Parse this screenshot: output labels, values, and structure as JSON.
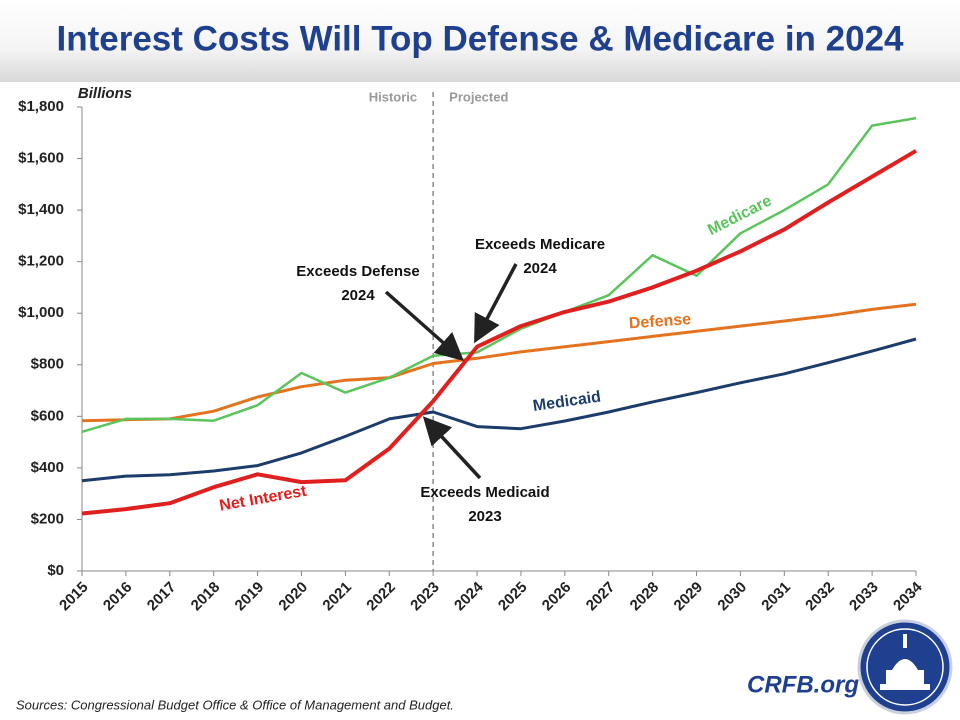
{
  "chart_data": {
    "type": "line",
    "title": "Interest Costs Will Top Defense & Medicare in 2024",
    "y_label": "Billions",
    "categories": [
      "2015",
      "2016",
      "2017",
      "2018",
      "2019",
      "2020",
      "2021",
      "2022",
      "2023",
      "2024",
      "2025",
      "2026",
      "2027",
      "2028",
      "2029",
      "2030",
      "2031",
      "2032",
      "2033",
      "2034"
    ],
    "series": [
      {
        "name": "Net Interest",
        "color": "#e0201e",
        "values": [
          223,
          240,
          263,
          325,
          375,
          345,
          352,
          475,
          659,
          870,
          950,
          1005,
          1045,
          1100,
          1165,
          1240,
          1325,
          1430,
          1530,
          1630
        ]
      },
      {
        "name": "Defense",
        "color": "#e4731f",
        "values": [
          583,
          587,
          590,
          620,
          675,
          715,
          740,
          750,
          805,
          825,
          850,
          870,
          890,
          910,
          930,
          950,
          970,
          990,
          1015,
          1035
        ]
      },
      {
        "name": "Medicare",
        "color": "#5cc45c",
        "values": [
          540,
          590,
          590,
          583,
          643,
          768,
          692,
          750,
          835,
          848,
          940,
          1005,
          1070,
          1225,
          1145,
          1310,
          1400,
          1500,
          1728,
          1757
        ]
      },
      {
        "name": "Medicaid",
        "color": "#1c3c6c",
        "values": [
          350,
          368,
          373,
          388,
          409,
          458,
          522,
          590,
          617,
          560,
          552,
          582,
          617,
          656,
          692,
          730,
          765,
          808,
          853,
          900
        ]
      }
    ],
    "ylim": [
      0,
      1800
    ],
    "yticks": [
      {
        "value": 0,
        "label": "$0"
      },
      {
        "value": 200,
        "label": "$200"
      },
      {
        "value": 400,
        "label": "$400"
      },
      {
        "value": 600,
        "label": "$600"
      },
      {
        "value": 800,
        "label": "$800"
      },
      {
        "value": 1000,
        "label": "$1,000"
      },
      {
        "value": 1200,
        "label": "$1,200"
      },
      {
        "value": 1400,
        "label": "$1,400"
      },
      {
        "value": 1600,
        "label": "$1,600"
      },
      {
        "value": 1800,
        "label": "$1,800"
      }
    ],
    "divider": {
      "category": "2023",
      "left_label": "Historic",
      "right_label": "Projected"
    },
    "annotations": [
      {
        "lines": [
          "Exceeds Defense",
          "2024"
        ]
      },
      {
        "lines": [
          "Exceeds Medicare",
          "2024"
        ]
      },
      {
        "lines": [
          "Exceeds Medicaid",
          "2023"
        ]
      }
    ],
    "source": "Sources: Congressional Budget Office & Office of Management and Budget.",
    "brand": "CRFB.org"
  }
}
